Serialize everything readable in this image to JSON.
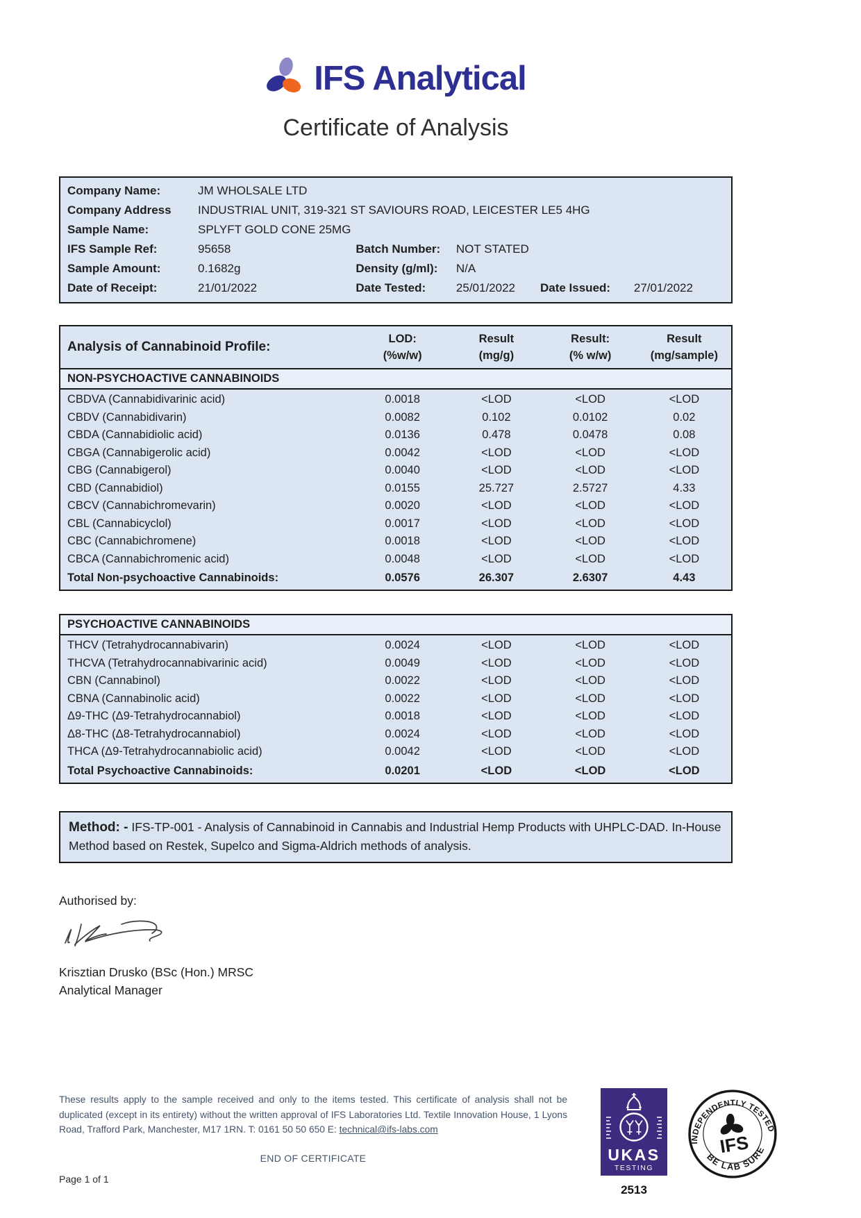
{
  "header": {
    "brand": "IFS Analytical",
    "title": "Certificate of Analysis"
  },
  "info": {
    "rows": [
      {
        "label": "Company Name:",
        "value": "JM WHOLSALE LTD"
      },
      {
        "label": "Company Address",
        "value": "INDUSTRIAL UNIT, 319-321 ST SAVIOURS ROAD, LEICESTER LE5 4HG"
      },
      {
        "label": "Sample Name:",
        "value": "SPLYFT GOLD CONE 25MG"
      },
      {
        "label": "IFS Sample Ref:",
        "value": "95658",
        "label2": "Batch Number:",
        "value2": "NOT STATED"
      },
      {
        "label": "Sample Amount:",
        "value": "0.1682g",
        "label2": "Density (g/ml):",
        "value2": "N/A"
      },
      {
        "label": "Date of Receipt:",
        "value": "21/01/2022",
        "label2": "Date Tested:",
        "value2": "25/01/2022",
        "label3": "Date Issued:",
        "value3": "27/01/2022"
      }
    ]
  },
  "analysis": {
    "title": "Analysis of Cannabinoid Profile:",
    "columns": [
      {
        "l1": "LOD:",
        "l2": "(%w/w)"
      },
      {
        "l1": "Result",
        "l2": "(mg/g)"
      },
      {
        "l1": "Result:",
        "l2": "(% w/w)"
      },
      {
        "l1": "Result",
        "l2": "(mg/sample)"
      }
    ],
    "non_psychoactive": {
      "header": "NON-PSYCHOACTIVE CANNABINOIDS",
      "rows": [
        {
          "name": "CBDVA (Cannabidivarinic acid)",
          "values": [
            "0.0018",
            "<LOD",
            "<LOD",
            "<LOD"
          ]
        },
        {
          "name": "CBDV (Cannabidivarin)",
          "values": [
            "0.0082",
            "0.102",
            "0.0102",
            "0.02"
          ]
        },
        {
          "name": "CBDA (Cannabidiolic acid)",
          "values": [
            "0.0136",
            "0.478",
            "0.0478",
            "0.08"
          ]
        },
        {
          "name": "CBGA (Cannabigerolic acid)",
          "values": [
            "0.0042",
            "<LOD",
            "<LOD",
            "<LOD"
          ]
        },
        {
          "name": "CBG (Cannabigerol)",
          "values": [
            "0.0040",
            "<LOD",
            "<LOD",
            "<LOD"
          ]
        },
        {
          "name": "CBD (Cannabidiol)",
          "values": [
            "0.0155",
            "25.727",
            "2.5727",
            "4.33"
          ]
        },
        {
          "name": "CBCV (Cannabichromevarin)",
          "values": [
            "0.0020",
            "<LOD",
            "<LOD",
            "<LOD"
          ]
        },
        {
          "name": "CBL (Cannabicyclol)",
          "values": [
            "0.0017",
            "<LOD",
            "<LOD",
            "<LOD"
          ]
        },
        {
          "name": "CBC (Cannabichromene)",
          "values": [
            "0.0018",
            "<LOD",
            "<LOD",
            "<LOD"
          ]
        },
        {
          "name": "CBCA (Cannabichromenic acid)",
          "values": [
            "0.0048",
            "<LOD",
            "<LOD",
            "<LOD"
          ]
        }
      ],
      "total": {
        "name": "Total Non-psychoactive Cannabinoids:",
        "values": [
          "0.0576",
          "26.307",
          "2.6307",
          "4.43"
        ]
      }
    },
    "psychoactive": {
      "header": "PSYCHOACTIVE CANNABINOIDS",
      "rows": [
        {
          "name": "THCV (Tetrahydrocannabivarin)",
          "values": [
            "0.0024",
            "<LOD",
            "<LOD",
            "<LOD"
          ]
        },
        {
          "name": "THCVA (Tetrahydrocannabivarinic acid)",
          "values": [
            "0.0049",
            "<LOD",
            "<LOD",
            "<LOD"
          ]
        },
        {
          "name": "CBN (Cannabinol)",
          "values": [
            "0.0022",
            "<LOD",
            "<LOD",
            "<LOD"
          ]
        },
        {
          "name": "CBNA (Cannabinolic acid)",
          "values": [
            "0.0022",
            "<LOD",
            "<LOD",
            "<LOD"
          ]
        },
        {
          "name": "Δ9-THC (Δ9-Tetrahydrocannabiol)",
          "values": [
            "0.0018",
            "<LOD",
            "<LOD",
            "<LOD"
          ]
        },
        {
          "name": "Δ8-THC (Δ8-Tetrahydrocannabiol)",
          "values": [
            "0.0024",
            "<LOD",
            "<LOD",
            "<LOD"
          ]
        },
        {
          "name": "THCA (Δ9-Tetrahydrocannabiolic acid)",
          "values": [
            "0.0042",
            "<LOD",
            "<LOD",
            "<LOD"
          ]
        }
      ],
      "total": {
        "name": "Total Psychoactive Cannabinoids:",
        "values": [
          "0.0201",
          "<LOD",
          "<LOD",
          "<LOD"
        ]
      }
    }
  },
  "method": {
    "label": "Method: -",
    "text": " IFS-TP-001 - Analysis of Cannabinoid in Cannabis and Industrial Hemp Products with UHPLC-DAD. In-House Method based on Restek, Supelco and Sigma-Aldrich methods of analysis."
  },
  "authorisation": {
    "label": "Authorised by:",
    "name": "Krisztian Drusko (BSc (Hon.) MRSC",
    "role": "Analytical Manager"
  },
  "footer": {
    "disclaimer": "These results apply to the sample received and only to the items tested. This certificate of analysis shall not be duplicated (except in its entirety) without the written approval of IFS Laboratories Ltd. Textile Innovation House, 1 Lyons Road, Trafford Park, Manchester, M17 1RN. T: 0161 50 50 650 E: ",
    "email": "technical@ifs-labs.com",
    "end_text": "END OF CERTIFICATE",
    "page_number": "Page 1 of 1",
    "ukas": {
      "name": "UKAS",
      "sub": "TESTING",
      "accreditation_number": "2513"
    },
    "stamp": {
      "arc_top": "INDEPENDENTLY TESTED",
      "arc_bottom": "BE LAB SURE",
      "center": "IFS"
    }
  },
  "colors": {
    "brand_navy": "#2d2f92",
    "logo_lavender": "#8d89c8",
    "logo_orange": "#f1661f",
    "table_bg": "#dce6f2",
    "section_bg": "#e9eff8",
    "ukas_purple": "#3e2b80",
    "footer_slate": "#44546a"
  }
}
